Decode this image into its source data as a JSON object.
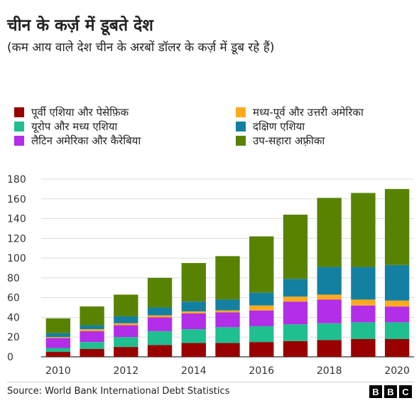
{
  "chart_data": {
    "type": "bar",
    "stacked": true,
    "title": "चीन के कर्ज़ में डूबते देश",
    "subtitle": "(कम आय वाले देश चीन के अरबों डॉलर के कर्ज़ में डूब रहे हैं)",
    "categories": [
      "2010",
      "2011",
      "2012",
      "2013",
      "2014",
      "2015",
      "2016",
      "2017",
      "2018",
      "2019",
      "2020"
    ],
    "x_tick_labels": [
      "2010",
      "2012",
      "2014",
      "2016",
      "2018",
      "2020"
    ],
    "ylim": [
      0,
      180
    ],
    "y_ticks": [
      "0",
      "20",
      "40",
      "60",
      "80",
      "100",
      "120",
      "140",
      "160",
      "180"
    ],
    "grid": true,
    "legend_position": "top",
    "series": [
      {
        "name": "पूर्वी एशिया और पेसेफ़िक",
        "color": "#990000",
        "values": [
          5,
          8,
          10,
          12,
          14,
          14,
          15,
          16,
          17,
          18,
          18
        ]
      },
      {
        "name": "यूरोप और मध्य एशिया",
        "color": "#1fbf8f",
        "values": [
          4,
          7,
          10,
          14,
          14,
          16,
          16,
          17,
          17,
          17,
          17
        ]
      },
      {
        "name": "लैटिन अमेरिका और कैरेबिया",
        "color": "#b22ee8",
        "values": [
          10,
          11,
          12,
          14,
          16,
          15,
          16,
          23,
          24,
          17,
          16
        ]
      },
      {
        "name": "मध्य-पूर्व और उत्तरी अमेरिका",
        "color": "#fdab1d",
        "values": [
          1,
          2,
          2,
          2,
          2,
          2,
          5,
          5,
          5,
          6,
          6
        ]
      },
      {
        "name": "दक्षिण एशिया",
        "color": "#1380a1",
        "values": [
          4,
          4,
          7,
          8,
          10,
          11,
          13,
          18,
          28,
          33,
          36
        ]
      },
      {
        "name": "उप-सहारा अफ़्रीका",
        "color": "#588300",
        "values": [
          15,
          19,
          22,
          30,
          39,
          44,
          57,
          65,
          70,
          75,
          77
        ]
      }
    ]
  },
  "footer": {
    "source": "Source: World Bank International Debt Statistics",
    "logo_letters": [
      "B",
      "B",
      "C"
    ]
  }
}
